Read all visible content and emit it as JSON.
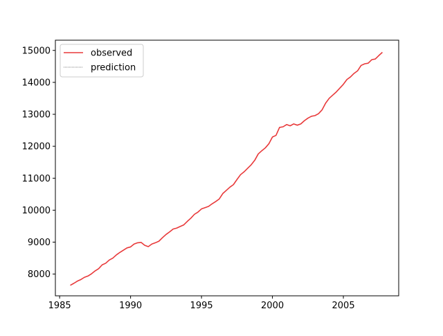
{
  "chart_data": {
    "type": "line",
    "title": "",
    "xlabel": "",
    "ylabel": "",
    "xlim": [
      1984.7,
      2008.9
    ],
    "ylim": [
      7320,
      15320
    ],
    "xticks": [
      1985,
      1990,
      1995,
      2000,
      2005
    ],
    "yticks": [
      8000,
      9000,
      10000,
      11000,
      12000,
      13000,
      14000,
      15000
    ],
    "grid": false,
    "legend": {
      "position": "top-left"
    },
    "series": [
      {
        "name": "observed",
        "color": "#e8393a",
        "style": "solid",
        "x": [
          1985.75,
          1986.0,
          1986.25,
          1986.5,
          1986.75,
          1987.0,
          1987.25,
          1987.5,
          1987.75,
          1988.0,
          1988.25,
          1988.5,
          1988.75,
          1989.0,
          1989.25,
          1989.5,
          1989.75,
          1990.0,
          1990.25,
          1990.5,
          1990.75,
          1991.0,
          1991.25,
          1991.5,
          1991.75,
          1992.0,
          1992.25,
          1992.5,
          1992.75,
          1993.0,
          1993.25,
          1993.5,
          1993.75,
          1994.0,
          1994.25,
          1994.5,
          1994.75,
          1995.0,
          1995.25,
          1995.5,
          1995.75,
          1996.0,
          1996.25,
          1996.5,
          1996.75,
          1997.0,
          1997.25,
          1997.5,
          1997.75,
          1998.0,
          1998.25,
          1998.5,
          1998.75,
          1999.0,
          1999.25,
          1999.5,
          1999.75,
          2000.0,
          2000.25,
          2000.5,
          2000.75,
          2001.0,
          2001.25,
          2001.5,
          2001.75,
          2002.0,
          2002.25,
          2002.5,
          2002.75,
          2003.0,
          2003.25,
          2003.5,
          2003.75,
          2004.0,
          2004.25,
          2004.5,
          2004.75,
          2005.0,
          2005.25,
          2005.5,
          2005.75,
          2006.0,
          2006.25,
          2006.5,
          2006.75,
          2007.0,
          2007.25,
          2007.5,
          2007.75
        ],
        "values": [
          7650,
          7710,
          7780,
          7830,
          7900,
          7940,
          8010,
          8100,
          8170,
          8290,
          8340,
          8440,
          8500,
          8600,
          8680,
          8750,
          8820,
          8850,
          8940,
          8980,
          8990,
          8900,
          8860,
          8940,
          8980,
          9030,
          9140,
          9240,
          9320,
          9410,
          9440,
          9490,
          9540,
          9650,
          9750,
          9870,
          9940,
          10040,
          10080,
          10120,
          10200,
          10270,
          10350,
          10520,
          10620,
          10720,
          10800,
          10960,
          11110,
          11200,
          11310,
          11420,
          11560,
          11760,
          11860,
          11950,
          12080,
          12290,
          12340,
          12590,
          12610,
          12680,
          12640,
          12700,
          12660,
          12700,
          12800,
          12880,
          12940,
          12960,
          13020,
          13140,
          13350,
          13500,
          13600,
          13700,
          13820,
          13940,
          14090,
          14170,
          14280,
          14360,
          14530,
          14580,
          14600,
          14710,
          14730,
          14840,
          14940
        ]
      },
      {
        "name": "prediction",
        "color": "#808080",
        "style": "dotted",
        "x": [],
        "values": []
      }
    ]
  }
}
